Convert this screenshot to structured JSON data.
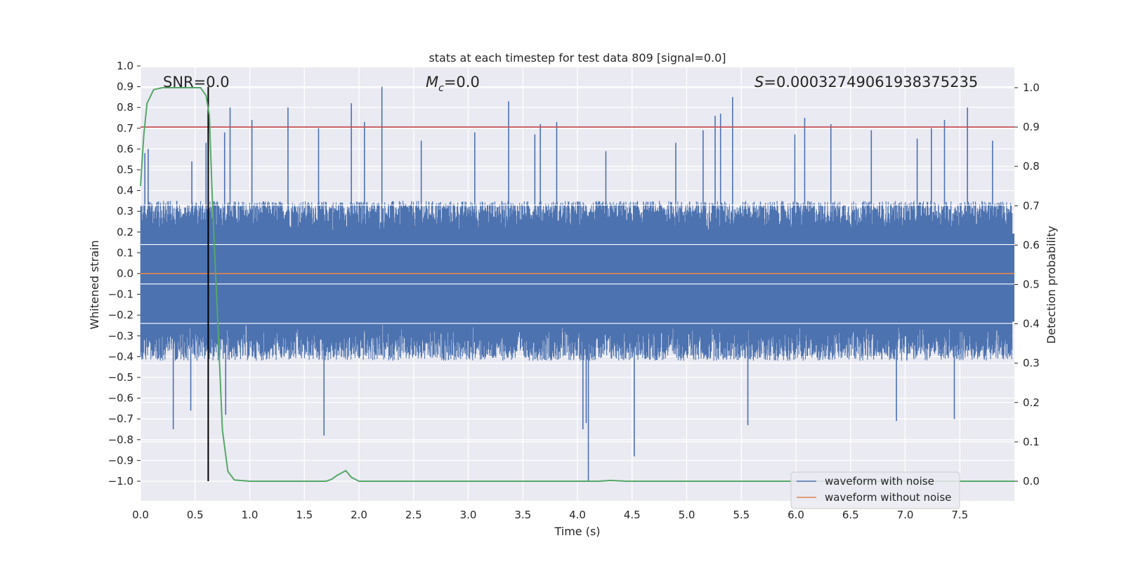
{
  "chart_data": {
    "type": "line",
    "title": "stats at each timestep for test data 809 [signal=0.0]",
    "xlabel": "Time (s)",
    "ylabel": "Whitened strain",
    "y2label": "Detection probability",
    "xlim": [
      0.0,
      8.0
    ],
    "ylim": [
      -1.08,
      1.0
    ],
    "y2lim": [
      -0.05,
      1.05
    ],
    "xticks": [
      "0.0",
      "0.5",
      "1.0",
      "1.5",
      "2.0",
      "2.5",
      "3.0",
      "3.5",
      "4.0",
      "4.5",
      "5.0",
      "5.5",
      "6.0",
      "6.5",
      "7.0",
      "7.5"
    ],
    "yticks": [
      "1.0",
      "0.9",
      "0.8",
      "0.7",
      "0.6",
      "0.5",
      "0.4",
      "0.3",
      "0.2",
      "0.1",
      "0.0",
      "−0.1",
      "−0.2",
      "−0.3",
      "−0.4",
      "−0.5",
      "−0.6",
      "−0.7",
      "−0.8",
      "−0.9",
      "−1.0"
    ],
    "y2ticks": [
      "1.0",
      "0.9",
      "0.8",
      "0.7",
      "0.6",
      "0.5",
      "0.4",
      "0.3",
      "0.2",
      "0.1",
      "0.0"
    ],
    "grid": true,
    "legend_position": "lower-right",
    "annotations": {
      "snr": "SNR=0.0",
      "mc_symbol": "M",
      "mc_sub": "c",
      "mc_value": "=0.0",
      "s_symbol": "S",
      "s_value": "=0.0003274906193837523​5"
    },
    "series": [
      {
        "name": "waveform with noise",
        "color": "#4c72b0",
        "axis": "left",
        "envelope": {
          "upper_typical": 0.35,
          "lower_typical": -0.42
        },
        "peaks": [
          [
            0.04,
            0.58
          ],
          [
            0.07,
            0.6
          ],
          [
            0.3,
            -0.75
          ],
          [
            0.47,
            0.54
          ],
          [
            0.46,
            -0.66
          ],
          [
            0.6,
            0.63
          ],
          [
            0.82,
            0.8
          ],
          [
            0.77,
            0.68
          ],
          [
            0.78,
            -0.68
          ],
          [
            1.02,
            0.74
          ],
          [
            1.35,
            0.8
          ],
          [
            1.63,
            0.7
          ],
          [
            1.68,
            -0.78
          ],
          [
            1.93,
            0.82
          ],
          [
            2.05,
            0.73
          ],
          [
            2.21,
            0.9
          ],
          [
            2.57,
            0.64
          ],
          [
            3.06,
            0.68
          ],
          [
            3.37,
            0.83
          ],
          [
            3.61,
            0.67
          ],
          [
            3.66,
            0.72
          ],
          [
            3.81,
            0.73
          ],
          [
            4.05,
            -0.75
          ],
          [
            4.08,
            -0.72
          ],
          [
            4.1,
            -1.0
          ],
          [
            4.26,
            0.59
          ],
          [
            4.52,
            -0.88
          ],
          [
            4.9,
            0.63
          ],
          [
            5.15,
            0.69
          ],
          [
            5.26,
            0.76
          ],
          [
            5.31,
            0.77
          ],
          [
            5.42,
            0.85
          ],
          [
            5.56,
            -0.73
          ],
          [
            5.99,
            0.67
          ],
          [
            6.08,
            0.75
          ],
          [
            6.32,
            0.72
          ],
          [
            6.69,
            0.69
          ],
          [
            6.92,
            -0.71
          ],
          [
            7.11,
            0.65
          ],
          [
            7.24,
            0.7
          ],
          [
            7.36,
            0.74
          ],
          [
            7.45,
            -0.7
          ],
          [
            7.57,
            0.8
          ],
          [
            7.8,
            0.64
          ]
        ]
      },
      {
        "name": "waveform without noise",
        "color": "#dd8452",
        "axis": "left",
        "x": [
          0.0,
          8.0
        ],
        "y": [
          0.0,
          0.0
        ]
      },
      {
        "name": "",
        "color": "#55a868",
        "axis": "right",
        "x": [
          0.0,
          0.03,
          0.06,
          0.12,
          0.2,
          0.3,
          0.45,
          0.55,
          0.6,
          0.63,
          0.66,
          0.7,
          0.75,
          0.8,
          0.86,
          1.0,
          1.5,
          1.7,
          1.75,
          1.8,
          1.88,
          1.93,
          2.0,
          2.2,
          4.0,
          4.2,
          4.3,
          4.45,
          4.6,
          8.0
        ],
        "y": [
          0.75,
          0.88,
          0.96,
          0.995,
          1.0,
          1.0,
          1.0,
          1.0,
          0.98,
          0.93,
          0.7,
          0.45,
          0.13,
          0.025,
          0.003,
          0.0,
          0.0,
          0.0,
          0.005,
          0.015,
          0.027,
          0.01,
          0.0,
          0.0,
          0.0,
          0.0,
          0.002,
          0.0,
          0.0,
          0.0
        ]
      }
    ],
    "hlines": [
      {
        "axis": "right",
        "value": 0.9,
        "color": "#c44e52"
      }
    ],
    "vlines": [
      {
        "x": 0.62,
        "y_from": -1.0,
        "y_to": 0.9,
        "color": "#000000"
      }
    ]
  }
}
